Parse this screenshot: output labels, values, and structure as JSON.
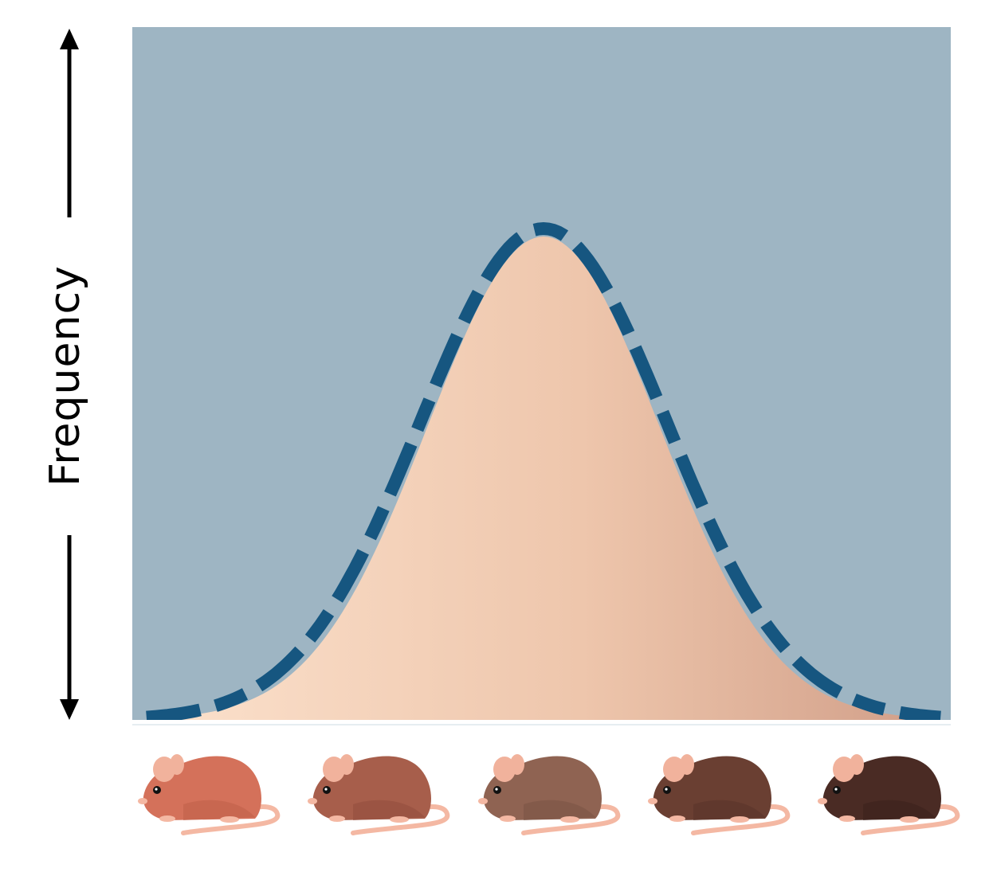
{
  "chart_data": {
    "type": "area",
    "ylabel": "Frequency",
    "xlabel": "",
    "title": "",
    "distribution": "normal",
    "x_categories": [
      "mouse-1",
      "mouse-2",
      "mouse-3",
      "mouse-4",
      "mouse-5"
    ],
    "curve": {
      "mean": 0.5,
      "sd": 0.155,
      "peak": 1.0
    }
  },
  "colors": {
    "background": "#9EB5C3",
    "curve_outline": "#165680",
    "fill_start": "#FBE0CB",
    "fill_end": "#D2A08A",
    "axis": "#000000"
  },
  "mice": [
    {
      "name": "mouse-light",
      "body": "#D4715A",
      "shade": "#BF604A"
    },
    {
      "name": "mouse-medium-light",
      "body": "#A75E4B",
      "shade": "#924F3D"
    },
    {
      "name": "mouse-medium",
      "body": "#8F6352",
      "shade": "#7C5546"
    },
    {
      "name": "mouse-medium-dark",
      "body": "#6A3F32",
      "shade": "#5A342A"
    },
    {
      "name": "mouse-dark",
      "body": "#4A2B24",
      "shade": "#3C221D"
    }
  ]
}
